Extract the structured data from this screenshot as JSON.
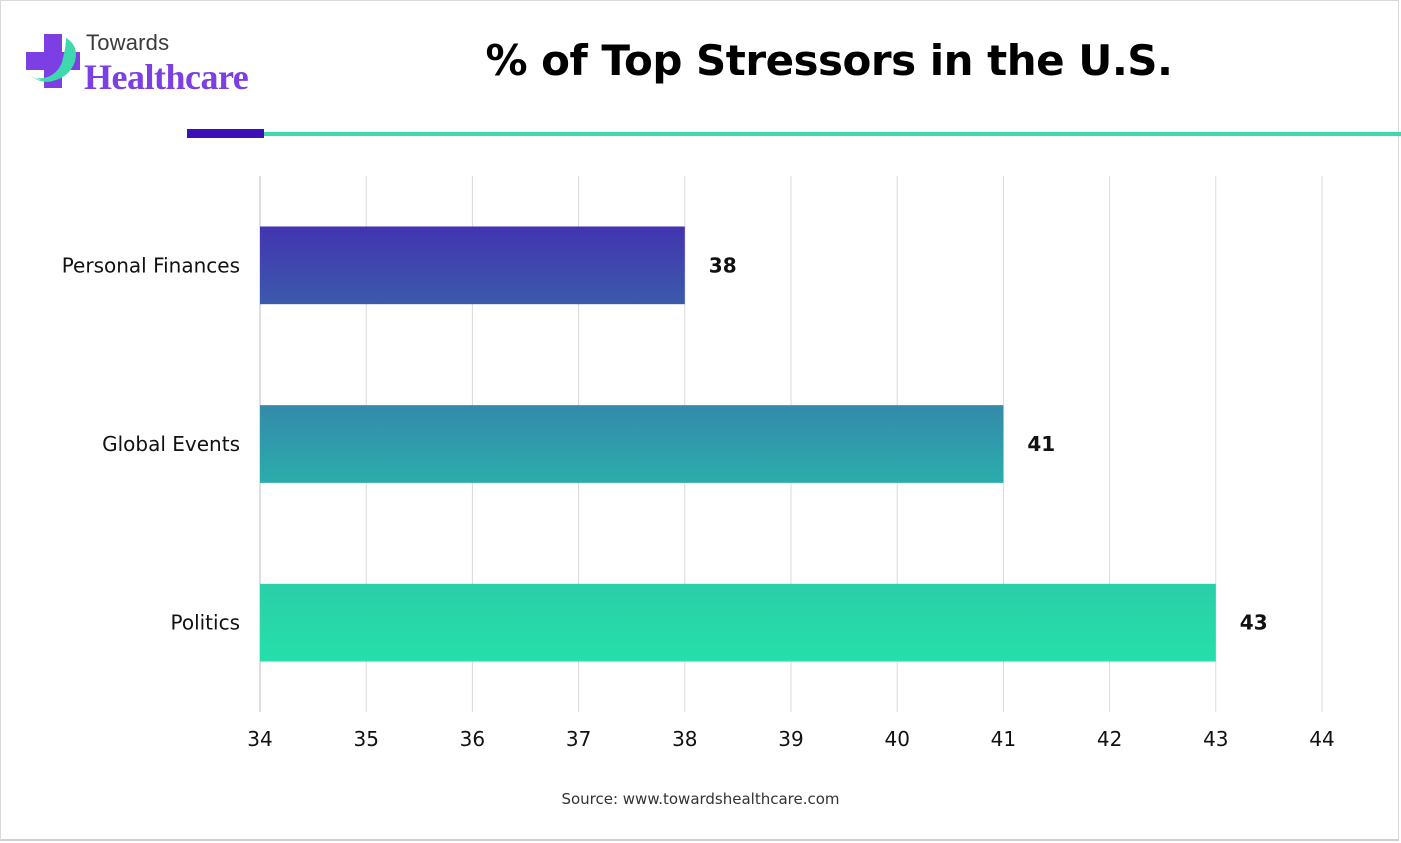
{
  "logo": {
    "line1": "Towards",
    "line2": "Healthcare",
    "icon": "cross-leaf-logo-icon"
  },
  "colors": {
    "accent_dark": "#3a12b8",
    "accent_light": "#3dd8ad",
    "brand_purple": "#7b3fe4"
  },
  "chart_data": {
    "type": "bar",
    "orientation": "horizontal",
    "title": "% of Top Stressors in the U.S.",
    "categories": [
      "Personal Finances",
      "Global Events",
      "Politics"
    ],
    "values": [
      38,
      41,
      43
    ],
    "bar_colors": [
      [
        "#4334b0",
        "#3b5aab"
      ],
      [
        "#348aab",
        "#2badab"
      ],
      [
        "#2acfa8",
        "#26dfa9"
      ]
    ],
    "xlabel": "",
    "ylabel": "",
    "xlim": [
      34,
      44
    ],
    "x_ticks": [
      34,
      35,
      36,
      37,
      38,
      39,
      40,
      41,
      42,
      43,
      44
    ],
    "grid": "vertical",
    "data_labels": true,
    "legend": "none",
    "source": "Source: www.towardshealthcare.com"
  }
}
